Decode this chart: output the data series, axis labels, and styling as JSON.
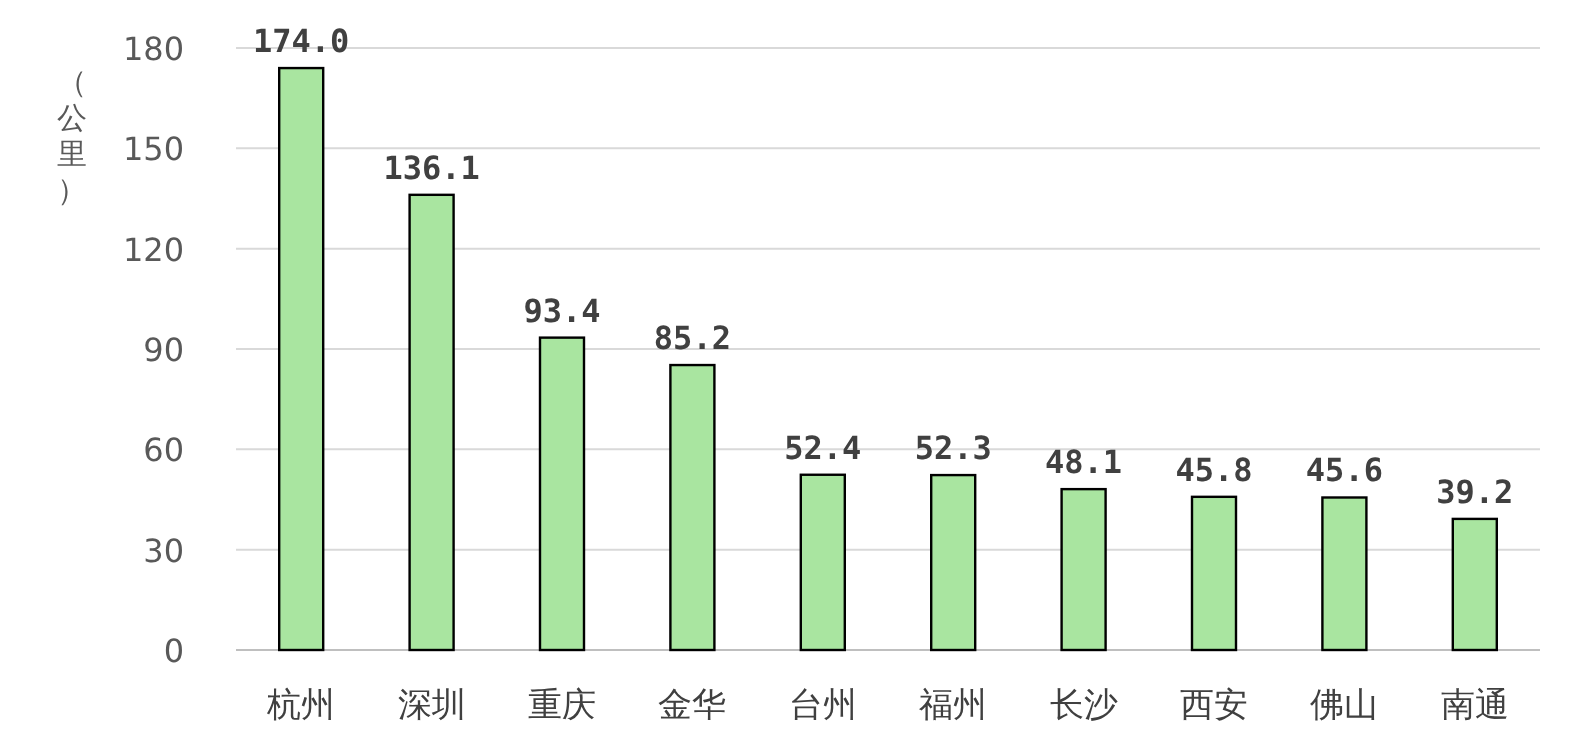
{
  "chart_data": {
    "type": "bar",
    "ylabel": "（公里）",
    "categories": [
      "杭州",
      "深圳",
      "重庆",
      "金华",
      "台州",
      "福州",
      "长沙",
      "西安",
      "佛山",
      "南通"
    ],
    "values": [
      174.0,
      136.1,
      93.4,
      85.2,
      52.4,
      52.3,
      48.1,
      45.8,
      45.6,
      39.2
    ],
    "value_labels": [
      "174.0",
      "136.1",
      "93.4",
      "85.2",
      "52.4",
      "52.3",
      "48.1",
      "45.8",
      "45.6",
      "39.2"
    ],
    "color": "#a9e5a0",
    "ylim": [
      0,
      180
    ],
    "yticks": [
      0,
      30,
      60,
      90,
      120,
      150,
      180
    ],
    "grid": "y"
  }
}
